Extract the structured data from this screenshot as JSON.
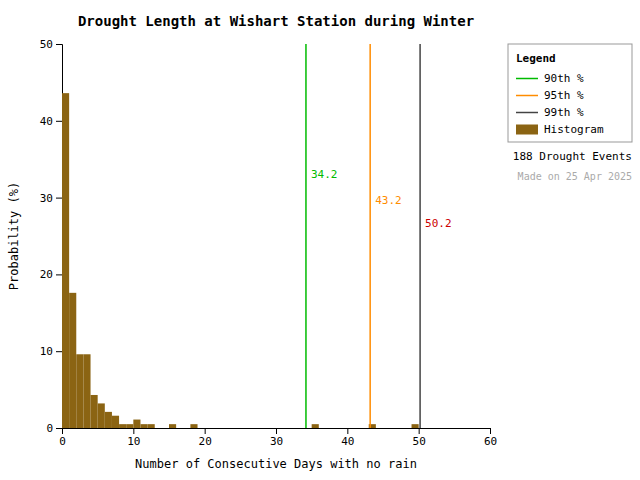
{
  "chart_data": {
    "type": "histogram",
    "title": "Drought Length at Wishart Station during Winter",
    "x_label": "Number of Consecutive Days with no rain",
    "y_label": "Probability (%)",
    "bins": [
      0,
      1,
      2,
      3,
      4,
      5,
      6,
      7,
      8,
      9,
      10,
      11,
      12,
      13,
      14,
      15,
      16,
      17,
      18,
      19,
      20,
      21,
      22,
      23,
      24,
      25,
      26,
      27,
      28,
      29,
      30,
      31,
      32,
      33,
      34,
      35,
      36,
      37,
      38,
      39,
      40,
      41,
      42,
      43,
      44,
      45,
      46,
      47,
      48,
      49,
      50,
      51,
      52,
      53,
      54,
      55,
      56,
      57,
      58,
      59,
      60
    ],
    "series": [
      {
        "name": "Histogram",
        "color": "#8B6413",
        "values": [
          43.6,
          17.6,
          9.6,
          9.6,
          4.3,
          3.2,
          2.1,
          1.6,
          0.5,
          0.5,
          1.1,
          0.5,
          0.5,
          0.0,
          0.0,
          0.5,
          0.0,
          0.0,
          0.5,
          0.0,
          0.0,
          0.0,
          0.0,
          0.0,
          0.0,
          0.0,
          0.0,
          0.0,
          0.0,
          0.0,
          0.0,
          0.0,
          0.0,
          0.0,
          0.0,
          0.5,
          0.0,
          0.0,
          0.0,
          0.0,
          0.0,
          0.0,
          0.0,
          0.5,
          0.0,
          0.0,
          0.0,
          0.0,
          0.0,
          0.5,
          0.0,
          0.0,
          0.0,
          0.0,
          0.0,
          0.0,
          0.0,
          0.0,
          0.0,
          0.0
        ]
      }
    ],
    "lines": [
      {
        "name": "90th %",
        "x": 34.2,
        "color": "#00BB00",
        "label_y": 33.0,
        "label_color": "#00BB00"
      },
      {
        "name": "95th %",
        "x": 43.2,
        "color": "#FF8C00",
        "label_y": 29.5,
        "label_color": "#FF8C00"
      },
      {
        "name": "99th %",
        "x": 50.2,
        "color": "#444444",
        "label_y": 26.5,
        "label_color": "#CC0000"
      }
    ],
    "legend": "upper right",
    "legend_title": "Legend",
    "annotations": [
      {
        "text": "188 Drought Events",
        "color": "#000000"
      },
      {
        "text": "Made on 25 Apr 2025",
        "color": "#AAAAAA"
      }
    ],
    "xlim": [
      0,
      60
    ],
    "ylim": [
      0,
      50
    ],
    "xticks": [
      0,
      10,
      20,
      30,
      40,
      50,
      60
    ],
    "yticks": [
      0,
      10,
      20,
      30,
      40,
      50
    ],
    "grid": false
  }
}
